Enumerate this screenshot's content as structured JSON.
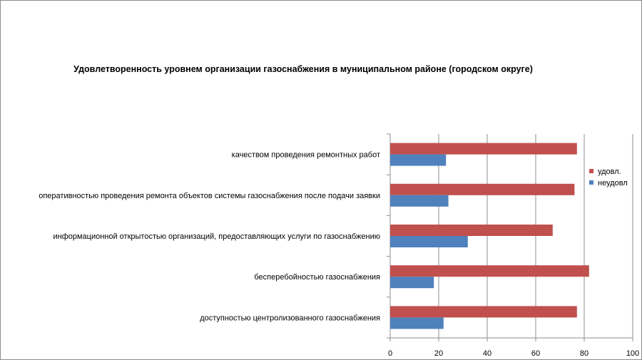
{
  "chart_data": {
    "type": "bar",
    "orientation": "horizontal",
    "title": "Удовлетворенность уровнем организации газоснабжения в муниципальном районе (городском округе)",
    "categories": [
      "качеством проведения ремонтных работ",
      "оперативностью проведения ремонта объектов системы газоснабжения после подачи заявки",
      "информационной открытостью организаций, предоставляющих услуги по газоснабжению",
      "бесперебойностью газоснабжения",
      "доступностью центролизованного газоснабжения"
    ],
    "series": [
      {
        "name": "удовл.",
        "color": "#c0504d",
        "values": [
          77,
          76,
          67,
          82,
          77
        ]
      },
      {
        "name": "неудовл",
        "color": "#4f81bd",
        "values": [
          23,
          24,
          32,
          18,
          22
        ]
      }
    ],
    "xlim": [
      0,
      100
    ],
    "xticks": [
      0,
      20,
      40,
      60,
      80,
      100
    ],
    "grid": true,
    "legend_position": "right"
  }
}
